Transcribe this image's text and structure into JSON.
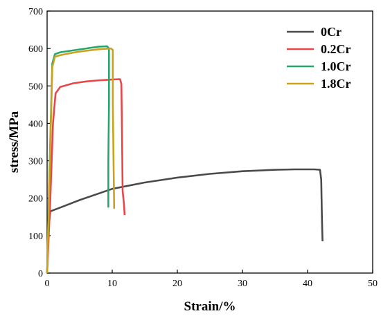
{
  "chart_data": {
    "type": "line",
    "xlabel": "Strain/%",
    "ylabel": "stress/MPa",
    "xlim": [
      0,
      50
    ],
    "ylim": [
      0,
      700
    ],
    "xticks": [
      "0",
      "10",
      "20",
      "30",
      "40",
      "50"
    ],
    "yticks": [
      "0",
      "100",
      "200",
      "300",
      "400",
      "500",
      "600",
      "700"
    ],
    "legend_position": "top-right",
    "grid": false,
    "series": [
      {
        "name": "0Cr",
        "color": "#4a4a4a",
        "points": [
          [
            0,
            0
          ],
          [
            0.2,
            120
          ],
          [
            0.5,
            165
          ],
          [
            2,
            175
          ],
          [
            5,
            195
          ],
          [
            10,
            225
          ],
          [
            15,
            242
          ],
          [
            20,
            255
          ],
          [
            25,
            265
          ],
          [
            30,
            272
          ],
          [
            35,
            276
          ],
          [
            38,
            277
          ],
          [
            41,
            277
          ],
          [
            41.9,
            276
          ],
          [
            42.1,
            250
          ],
          [
            42.2,
            150
          ],
          [
            42.3,
            85
          ]
        ]
      },
      {
        "name": "0.2Cr",
        "color": "#e8474a",
        "points": [
          [
            0,
            0
          ],
          [
            0.5,
            200
          ],
          [
            0.9,
            400
          ],
          [
            1.3,
            480
          ],
          [
            2,
            497
          ],
          [
            4,
            507
          ],
          [
            6,
            512
          ],
          [
            8,
            515
          ],
          [
            10,
            517
          ],
          [
            11.2,
            518
          ],
          [
            11.4,
            505
          ],
          [
            11.5,
            380
          ],
          [
            11.6,
            220
          ],
          [
            11.8,
            185
          ],
          [
            11.9,
            155
          ]
        ]
      },
      {
        "name": "1.0Cr",
        "color": "#27a56a",
        "points": [
          [
            0,
            0
          ],
          [
            0.4,
            300
          ],
          [
            0.8,
            560
          ],
          [
            1.2,
            585
          ],
          [
            2,
            590
          ],
          [
            4,
            595
          ],
          [
            6,
            600
          ],
          [
            8,
            605
          ],
          [
            9.2,
            606
          ],
          [
            9.5,
            600
          ],
          [
            9.5,
            450
          ],
          [
            9.4,
            300
          ],
          [
            9.4,
            175
          ]
        ]
      },
      {
        "name": "1.8Cr",
        "color": "#c9a21e",
        "points": [
          [
            0,
            0
          ],
          [
            0.4,
            280
          ],
          [
            0.8,
            550
          ],
          [
            1.2,
            578
          ],
          [
            2,
            582
          ],
          [
            4,
            589
          ],
          [
            6,
            594
          ],
          [
            8,
            598
          ],
          [
            9.8,
            600
          ],
          [
            10.1,
            596
          ],
          [
            10.1,
            450
          ],
          [
            10.2,
            300
          ],
          [
            10.3,
            172
          ]
        ]
      }
    ]
  }
}
